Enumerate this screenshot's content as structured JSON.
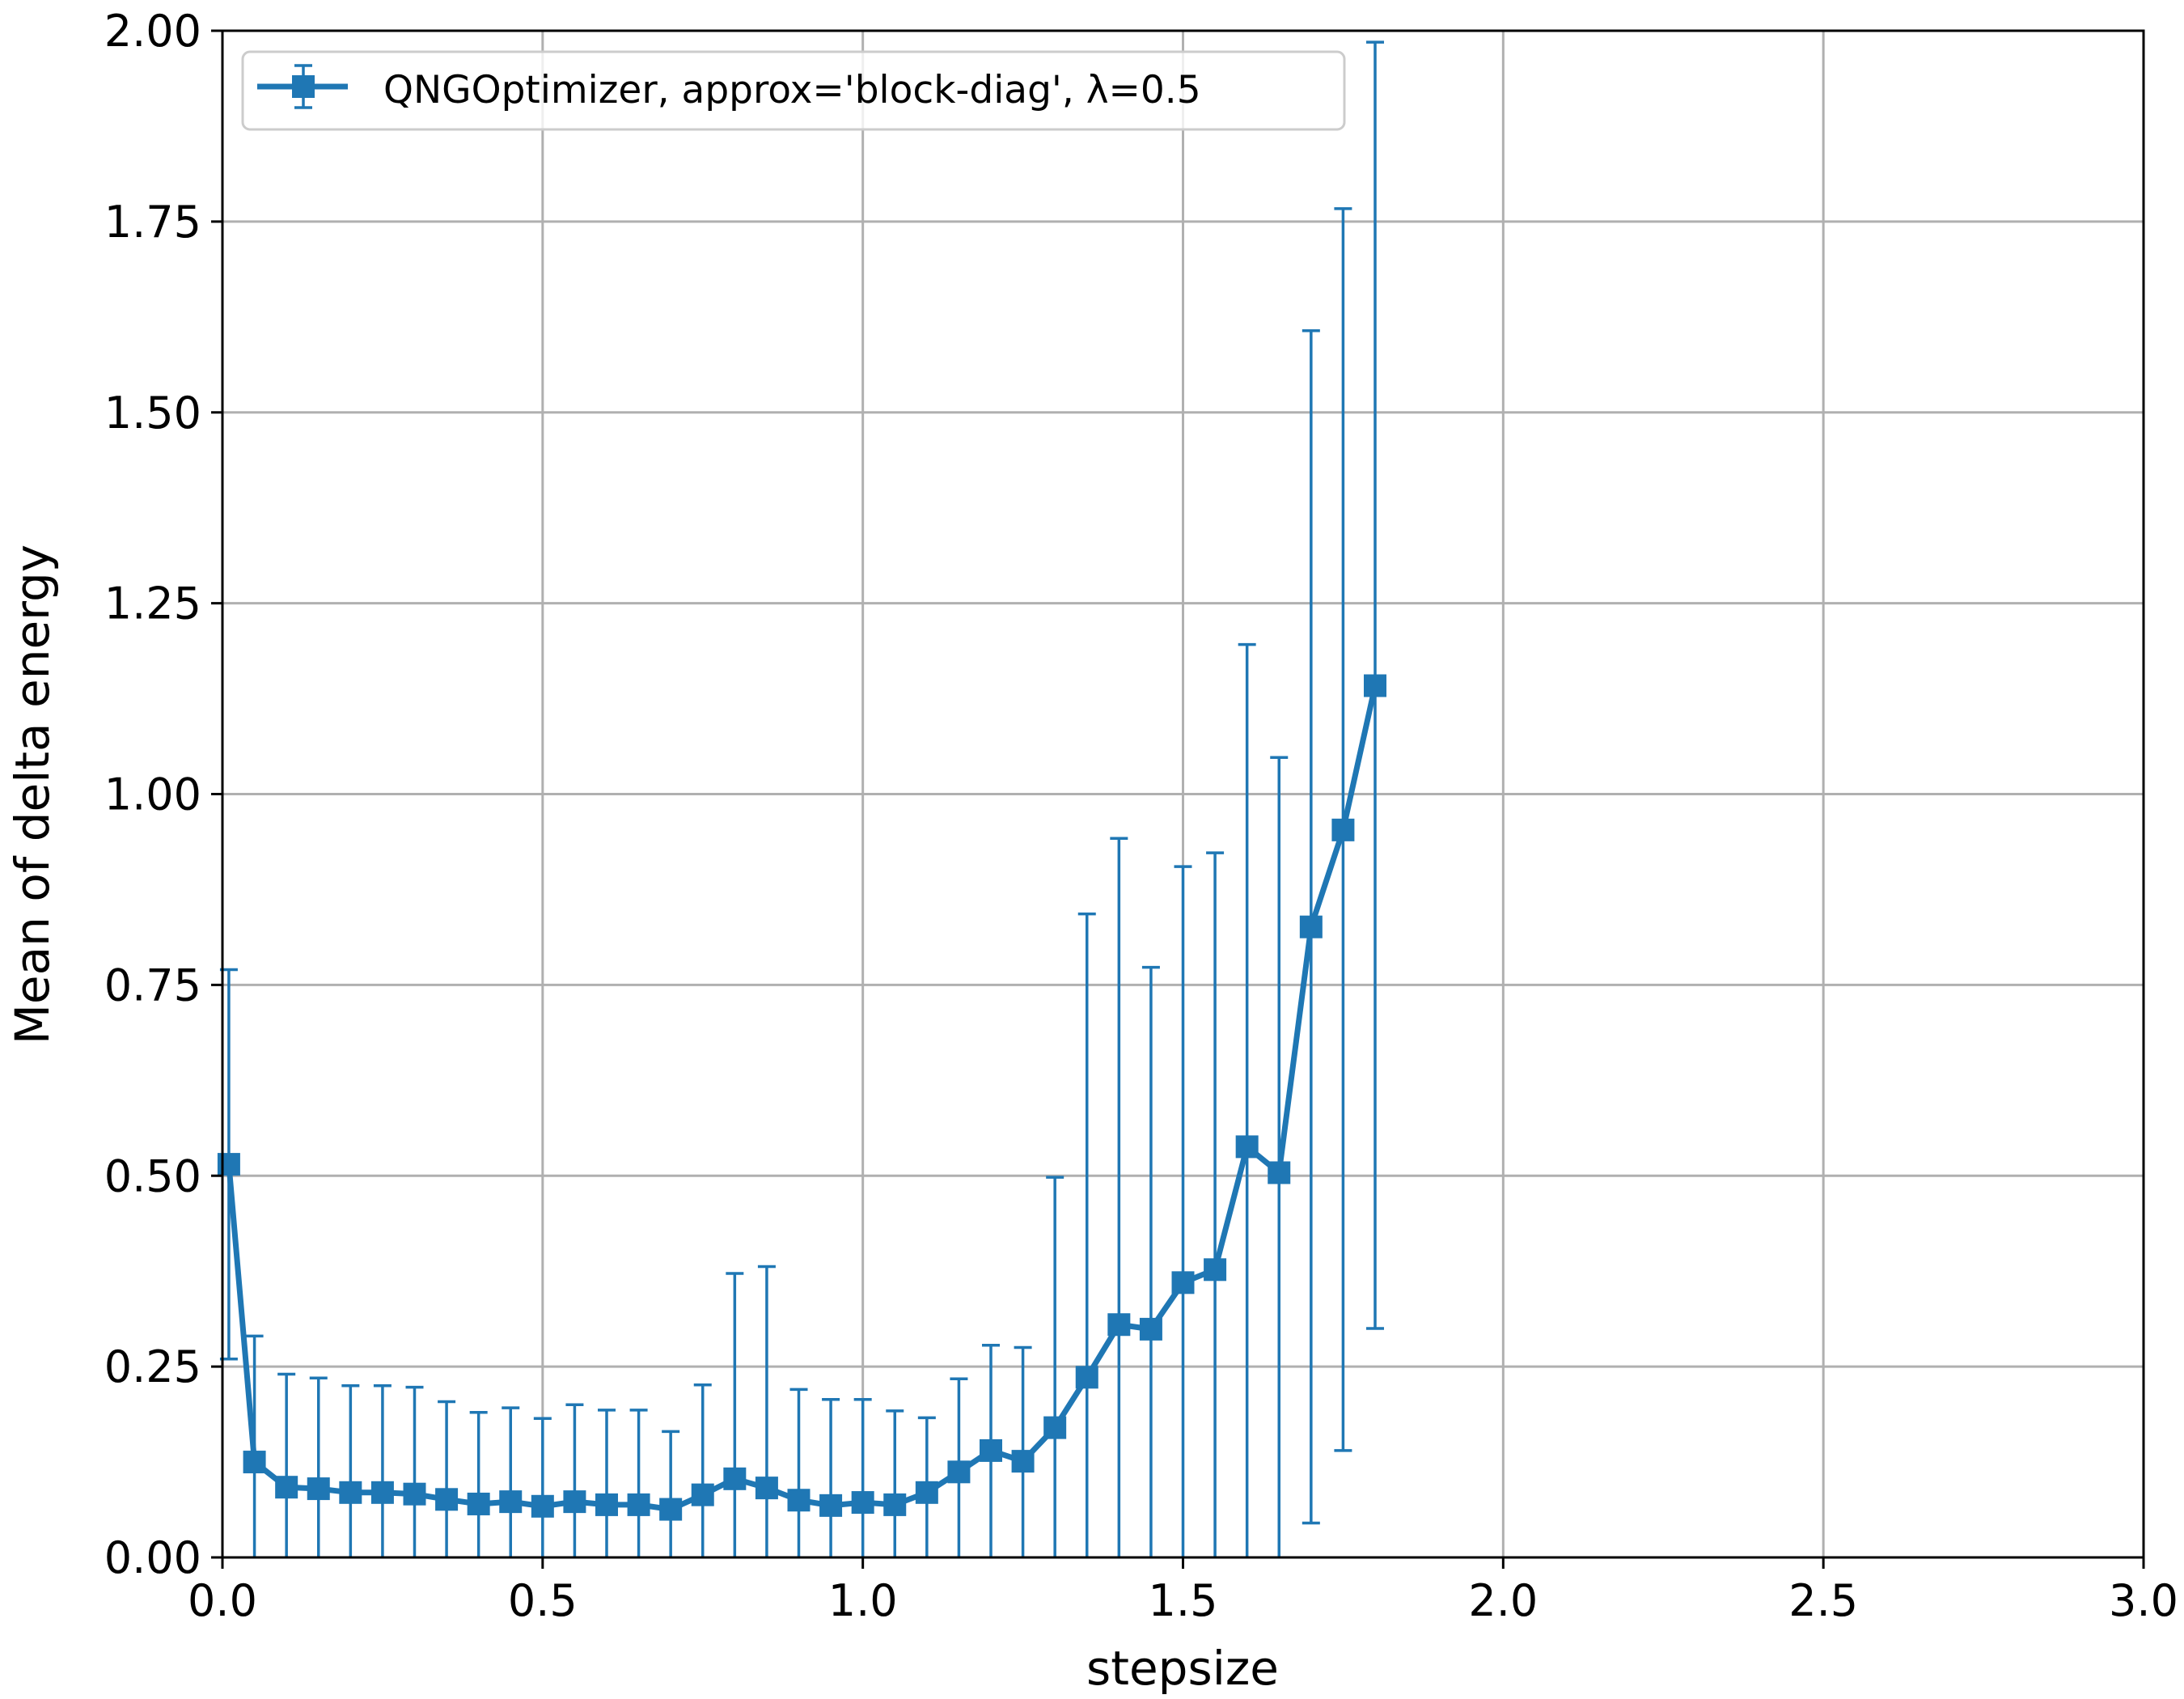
{
  "chart_data": {
    "type": "line",
    "xlabel": "stepsize",
    "ylabel": "Mean of delta energy",
    "xlim": [
      0.0,
      3.0
    ],
    "ylim": [
      0.0,
      2.0
    ],
    "xticks": [
      0.0,
      0.5,
      1.0,
      1.5,
      2.0,
      2.5,
      3.0
    ],
    "xtick_labels": [
      "0.0",
      "0.5",
      "1.0",
      "1.5",
      "2.0",
      "2.5",
      "3.0"
    ],
    "yticks": [
      0.0,
      0.25,
      0.5,
      0.75,
      1.0,
      1.25,
      1.5,
      1.75,
      2.0
    ],
    "ytick_labels": [
      "0.00",
      "0.25",
      "0.50",
      "0.75",
      "1.00",
      "1.25",
      "1.50",
      "1.75",
      "2.00"
    ],
    "grid": true,
    "legend_position": "top-left",
    "marker": "square",
    "error_bars": true,
    "series": [
      {
        "name": "QNGOptimizer, approx='block-diag', λ=0.5",
        "color": "#1f77b4",
        "x": [
          0.01,
          0.05,
          0.1,
          0.15,
          0.2,
          0.25,
          0.3,
          0.35,
          0.4,
          0.45,
          0.5,
          0.55,
          0.6,
          0.65,
          0.7,
          0.75,
          0.8,
          0.85,
          0.9,
          0.95,
          1.0,
          1.05,
          1.1,
          1.15,
          1.2,
          1.25,
          1.3,
          1.35,
          1.4,
          1.45,
          1.5,
          1.55,
          1.6,
          1.65,
          1.7,
          1.75,
          1.8
        ],
        "y": [
          0.515,
          0.125,
          0.092,
          0.09,
          0.085,
          0.085,
          0.083,
          0.076,
          0.07,
          0.073,
          0.067,
          0.073,
          0.069,
          0.069,
          0.063,
          0.082,
          0.103,
          0.091,
          0.075,
          0.068,
          0.072,
          0.069,
          0.085,
          0.112,
          0.14,
          0.126,
          0.17,
          0.236,
          0.305,
          0.299,
          0.36,
          0.377,
          0.538,
          0.504,
          0.826,
          0.953,
          1.142
        ],
        "yerr_low": [
          0.26,
          0.0,
          0.0,
          0.0,
          0.0,
          0.0,
          0.0,
          0.0,
          0.0,
          0.0,
          0.0,
          0.0,
          0.0,
          0.0,
          0.0,
          0.0,
          0.0,
          0.0,
          0.0,
          0.0,
          0.0,
          0.0,
          0.0,
          0.0,
          0.0,
          0.0,
          0.0,
          0.0,
          0.0,
          0.0,
          0.0,
          0.0,
          0.0,
          0.0,
          0.045,
          0.14,
          0.3
        ],
        "yerr_high": [
          0.77,
          0.29,
          0.24,
          0.235,
          0.225,
          0.225,
          0.223,
          0.204,
          0.19,
          0.196,
          0.182,
          0.2,
          0.193,
          0.193,
          0.165,
          0.226,
          0.372,
          0.381,
          0.22,
          0.207,
          0.207,
          0.192,
          0.183,
          0.234,
          0.278,
          0.275,
          0.498,
          0.843,
          0.942,
          0.773,
          0.905,
          0.923,
          1.196,
          1.048,
          1.607,
          1.767,
          1.985
        ]
      }
    ]
  }
}
